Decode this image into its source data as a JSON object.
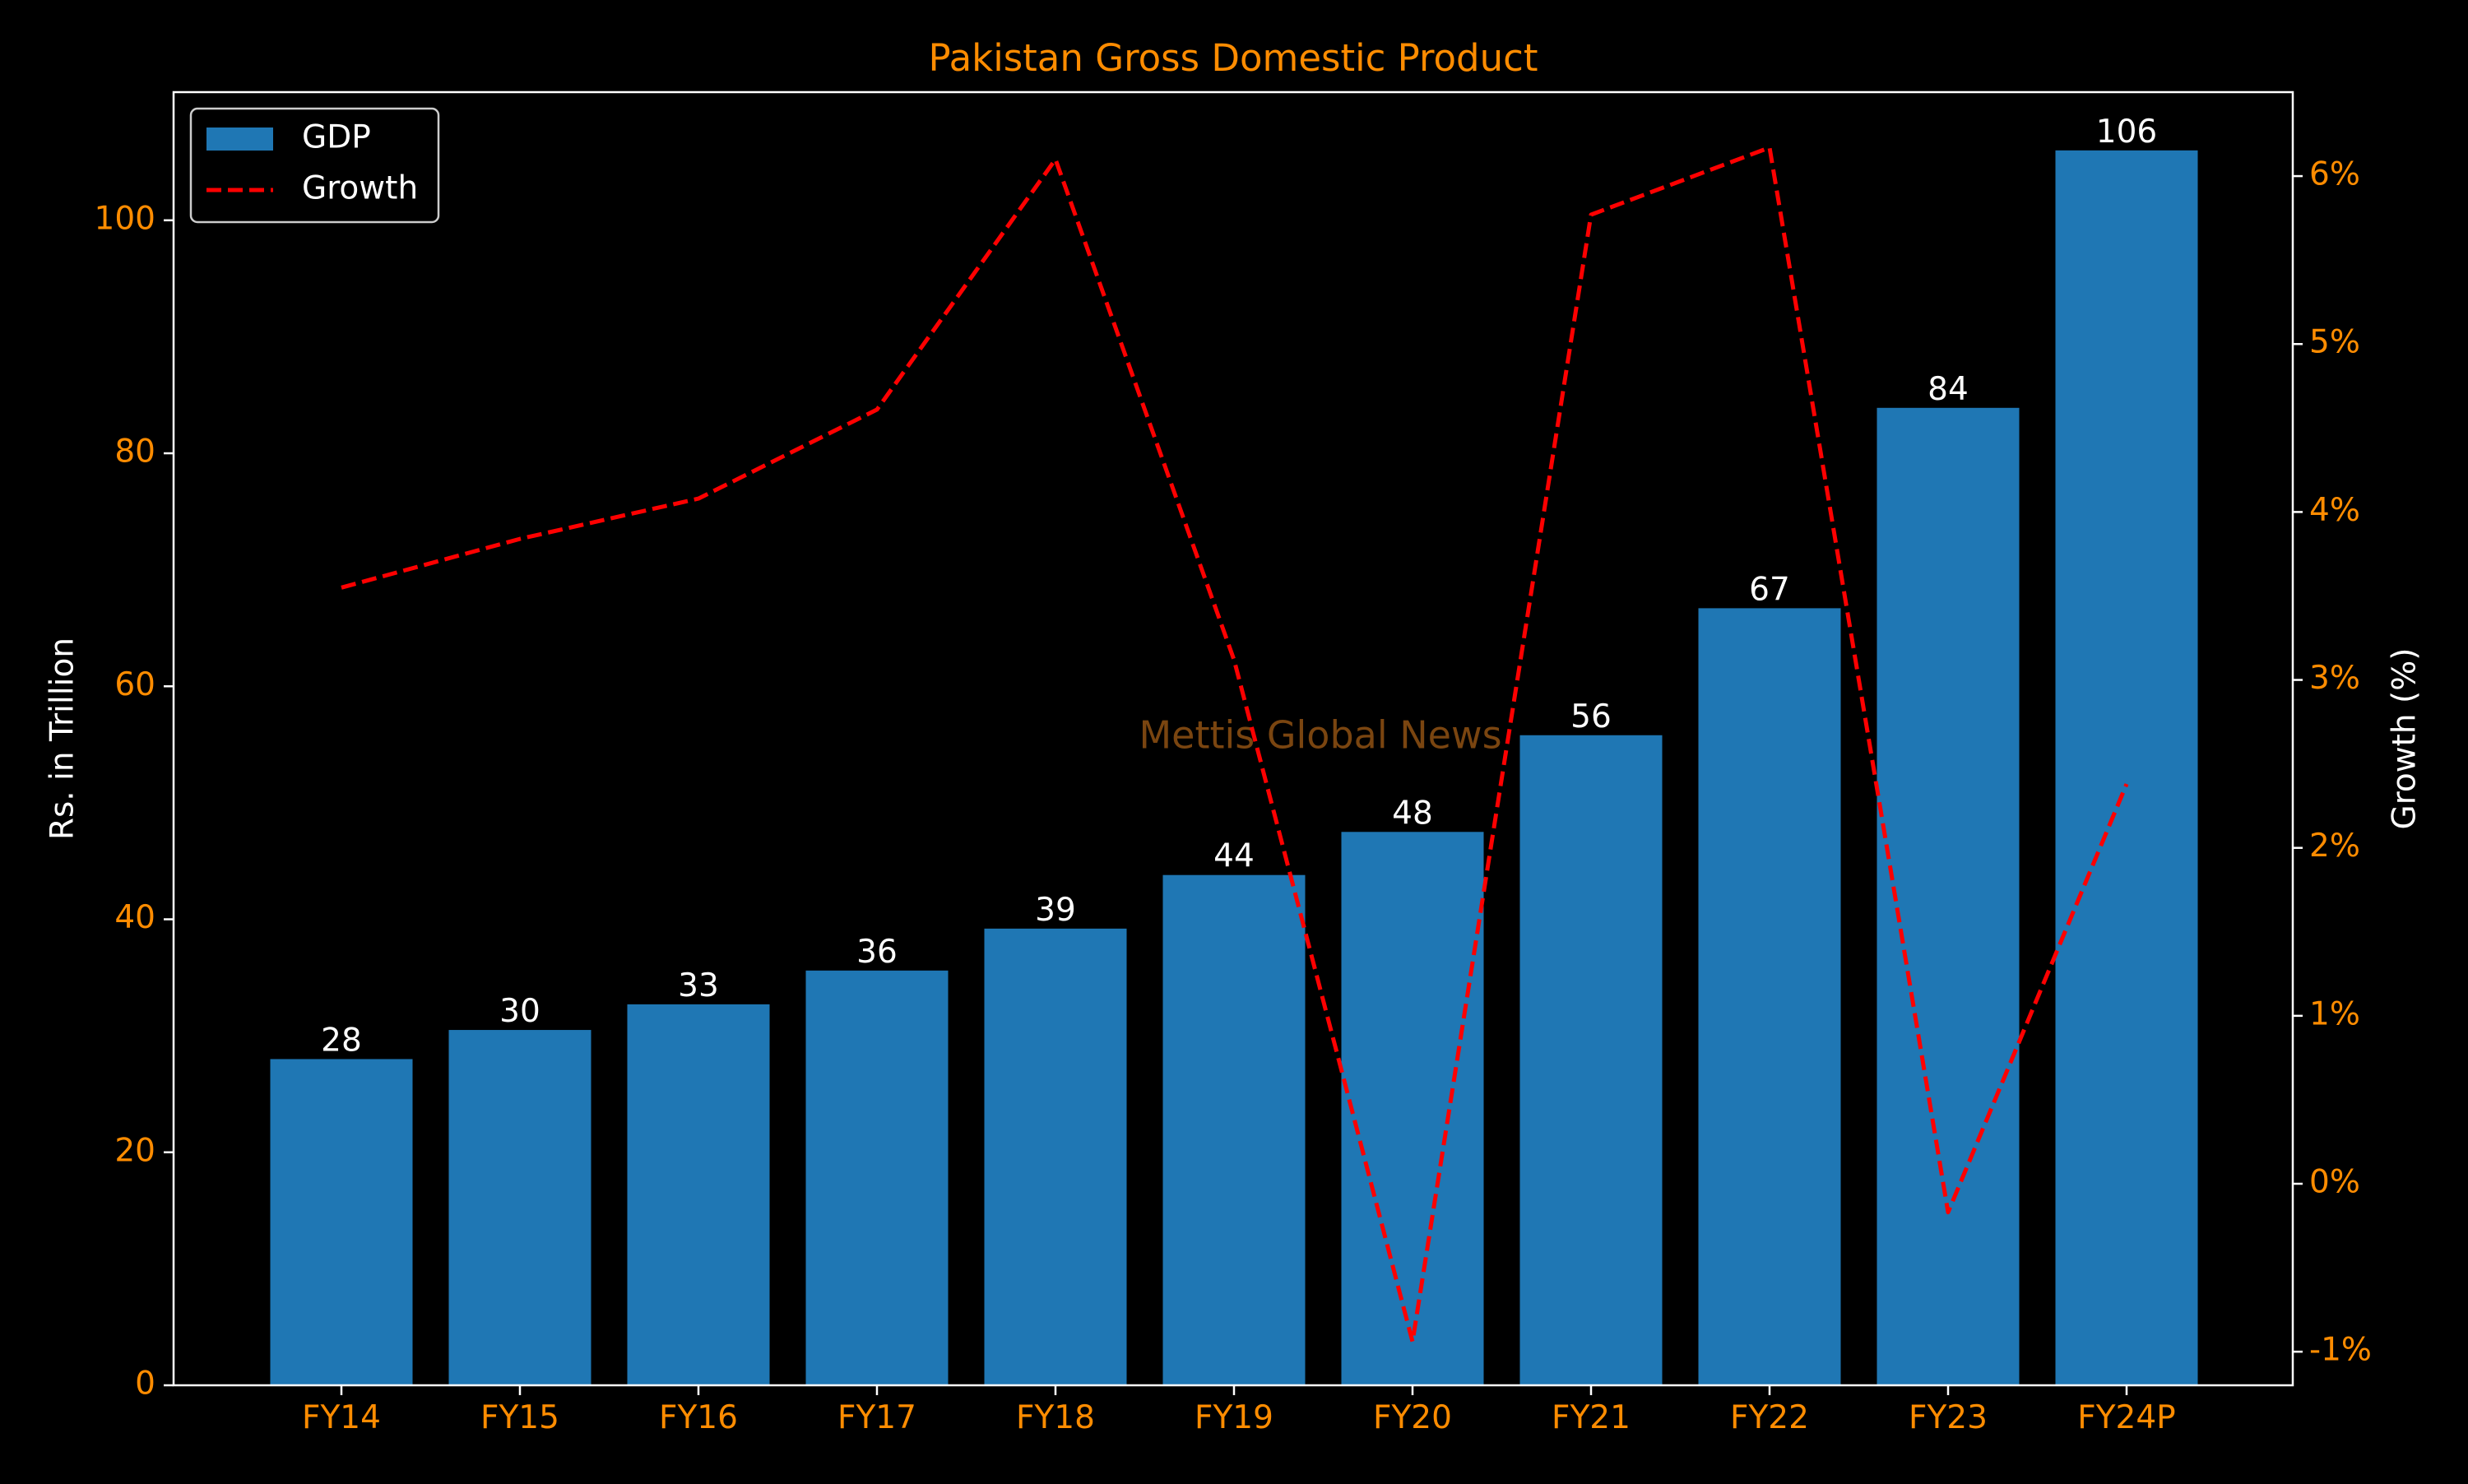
{
  "chart_data": {
    "type": "bar",
    "title": "Pakistan Gross Domestic Product",
    "categories": [
      "FY14",
      "FY15",
      "FY16",
      "FY17",
      "FY18",
      "FY19",
      "FY20",
      "FY21",
      "FY22",
      "FY23",
      "FY24P"
    ],
    "series": [
      {
        "name": "GDP",
        "type": "bar",
        "axis": "left",
        "color": "#1f77b4",
        "values": [
          28.0,
          30.5,
          32.7,
          35.6,
          39.2,
          43.8,
          47.5,
          55.8,
          66.7,
          83.9,
          106.0
        ],
        "data_labels": [
          "28",
          "30",
          "33",
          "36",
          "39",
          "44",
          "48",
          "56",
          "67",
          "84",
          "106"
        ]
      },
      {
        "name": "Growth",
        "type": "line",
        "axis": "right",
        "color": "#ff0000",
        "line_style": "dashed",
        "values": [
          3.55,
          3.84,
          4.08,
          4.61,
          6.1,
          3.12,
          -0.94,
          5.77,
          6.17,
          -0.17,
          2.38
        ]
      }
    ],
    "ylabel": "Rs. in Trillion",
    "ylim": [
      0,
      111
    ],
    "yticks": [
      0,
      20,
      40,
      60,
      80,
      100
    ],
    "ytick_labels": [
      "0",
      "20",
      "40",
      "60",
      "80",
      "100"
    ],
    "y2label": "Growth (%)",
    "y2lim": [
      -1.2,
      6.5
    ],
    "y2ticks": [
      -1,
      0,
      1,
      2,
      3,
      4,
      5,
      6
    ],
    "y2tick_labels": [
      "-1%",
      "0%",
      "1%",
      "2%",
      "3%",
      "4%",
      "5%",
      "6%"
    ],
    "legend": {
      "placement": "top-left",
      "entries": [
        "GDP",
        "Growth"
      ]
    },
    "watermark": "Mettis Global News",
    "grid": false,
    "colors": {
      "background": "#000000",
      "axes": "#ffffff",
      "title": "#ff8c00",
      "tick_labels": "#ff8c00",
      "axis_labels": "#ffffff",
      "data_labels": "#ffffff",
      "watermark": "#7a4510"
    }
  }
}
